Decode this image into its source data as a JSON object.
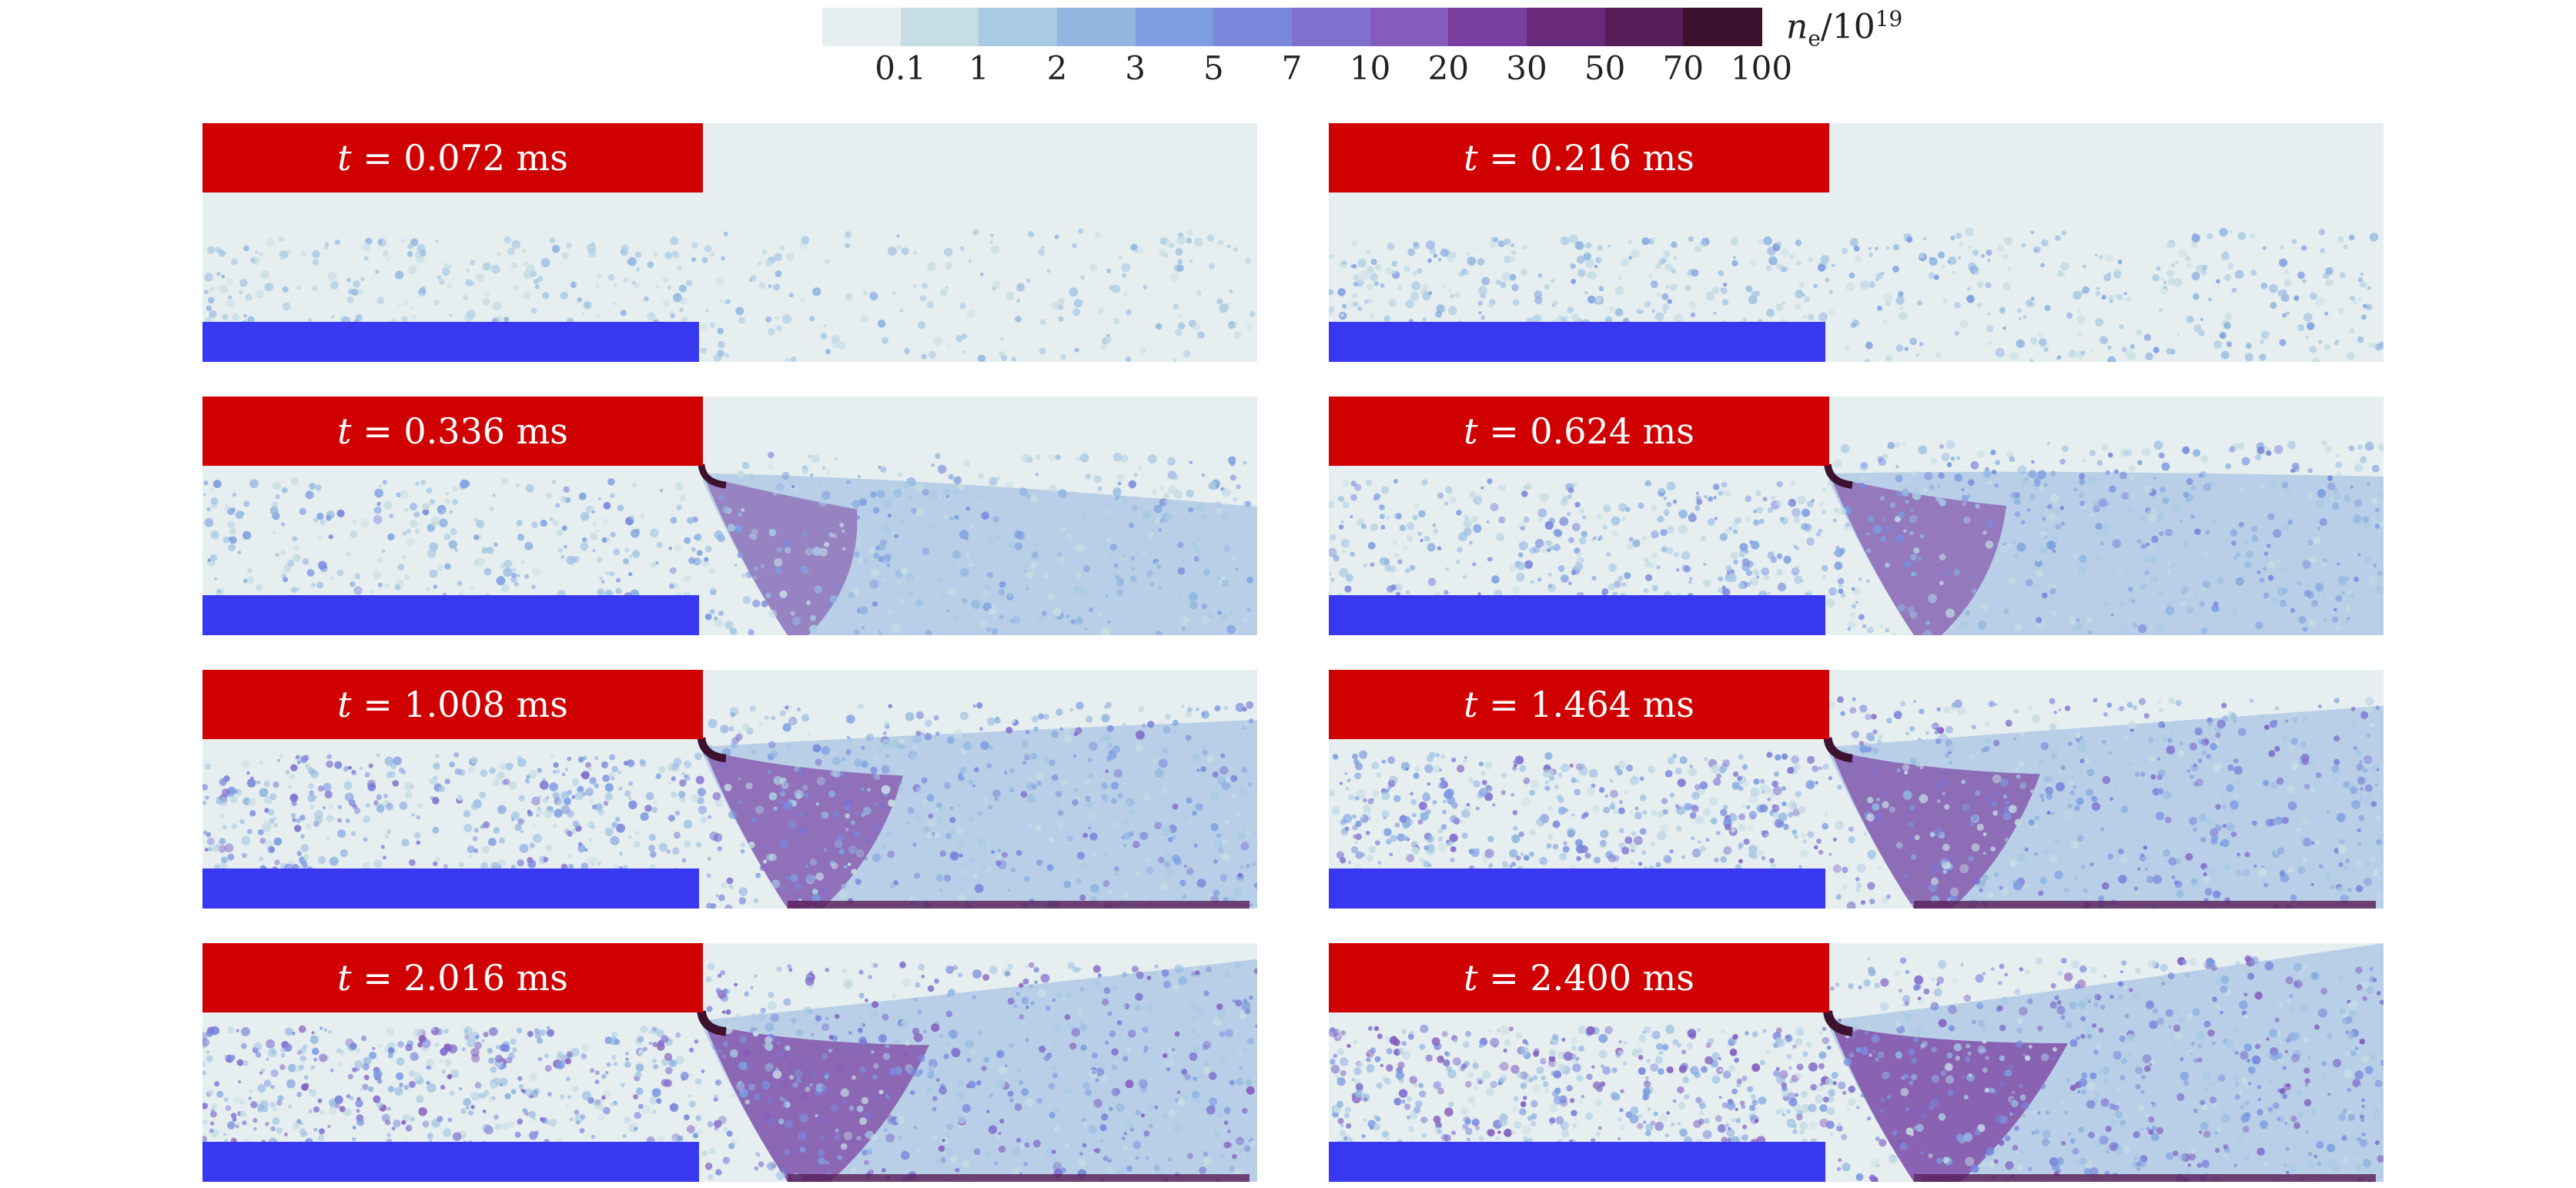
{
  "colorbar": {
    "unit": "n",
    "unit_sub": "e",
    "unit_den": "/10",
    "unit_exp": "19",
    "ticks": [
      "0.1",
      "1",
      "2",
      "3",
      "5",
      "7",
      "10",
      "20",
      "30",
      "50",
      "70",
      "100"
    ],
    "colors": [
      "#e6eeef",
      "#c6dde4",
      "#a9cae3",
      "#91b6e0",
      "#7c9de1",
      "#7a88dc",
      "#8170ce",
      "#835cbd",
      "#7a3ea0",
      "#6a2a7c",
      "#571d58",
      "#3d1230"
    ]
  },
  "panels": [
    {
      "t_prefix": "t",
      "time": "= 0.072 ms",
      "intensity": 0.15
    },
    {
      "t_prefix": "t",
      "time": "= 0.216 ms",
      "intensity": 0.3
    },
    {
      "t_prefix": "t",
      "time": "= 0.336 ms",
      "intensity": 0.45
    },
    {
      "t_prefix": "t",
      "time": "= 0.624 ms",
      "intensity": 0.6
    },
    {
      "t_prefix": "t",
      "time": "= 1.008 ms",
      "intensity": 0.75
    },
    {
      "t_prefix": "t",
      "time": "= 1.464 ms",
      "intensity": 0.82
    },
    {
      "t_prefix": "t",
      "time": "= 2.016 ms",
      "intensity": 0.92
    },
    {
      "t_prefix": "t",
      "time": "= 2.400 ms",
      "intensity": 1.0
    }
  ]
}
